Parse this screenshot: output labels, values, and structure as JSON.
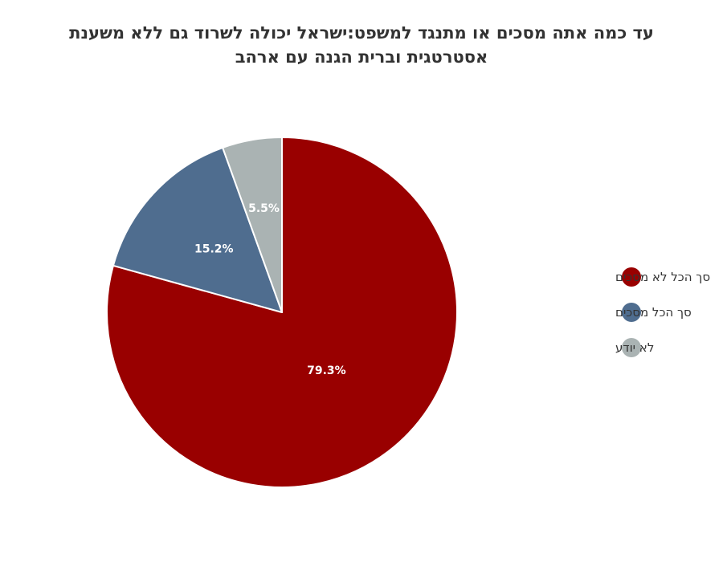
{
  "chart_data": {
    "type": "pie",
    "title": "עד כמה אתה מסכים או מתנגד למשפט:ישראל יכולה לשרוד גם ללא משענת אסטרטגית וברית הגנה עם ארהב",
    "categories": [
      "סך הכל לא מסכים",
      "סך הכל מסכים",
      "לא יודע"
    ],
    "values": [
      79.3,
      15.2,
      5.5
    ],
    "labels": [
      "79.3%",
      "15.2%",
      "5.5%"
    ],
    "colors": [
      "#990000",
      "#4f6d8f",
      "#aab3b3"
    ],
    "legend_position": "right"
  }
}
